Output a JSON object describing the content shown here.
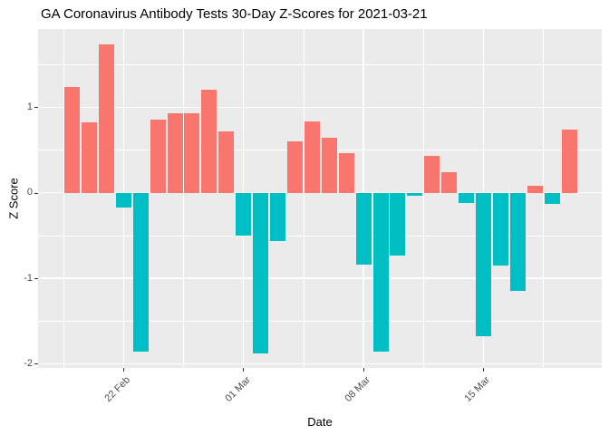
{
  "title": "GA Coronavirus Antibody Tests 30-Day Z-Scores for 2021-03-21",
  "chart_data": {
    "type": "bar",
    "title": "GA Coronavirus Antibody Tests 30-Day Z-Scores for 2021-03-21",
    "xlabel": "Date",
    "ylabel": "Z Score",
    "legend_position": "none",
    "grid": "on",
    "ylim": [
      -2.06,
      1.92
    ],
    "y_major_ticks": [
      1,
      0,
      -1,
      -2
    ],
    "y_major_tick_labels": [
      "1",
      "0",
      "-1",
      "-2"
    ],
    "y_minor_ticks": [
      1.5,
      0.5,
      -0.5,
      -1.5
    ],
    "x_tick_labels": [
      "22 Feb",
      "01 Mar",
      "08 Mar",
      "15 Mar"
    ],
    "x_tick_dates": [
      "2021-02-22",
      "2021-03-01",
      "2021-03-08",
      "2021-03-15"
    ],
    "dates": [
      "2021-02-19",
      "2021-02-20",
      "2021-02-21",
      "2021-02-22",
      "2021-02-23",
      "2021-02-24",
      "2021-02-25",
      "2021-02-26",
      "2021-02-27",
      "2021-02-28",
      "2021-03-01",
      "2021-03-02",
      "2021-03-03",
      "2021-03-04",
      "2021-03-05",
      "2021-03-06",
      "2021-03-07",
      "2021-03-08",
      "2021-03-09",
      "2021-03-10",
      "2021-03-11",
      "2021-03-12",
      "2021-03-13",
      "2021-03-14",
      "2021-03-15",
      "2021-03-16",
      "2021-03-17",
      "2021-03-18",
      "2021-03-19",
      "2021-03-20"
    ],
    "values": [
      1.24,
      0.82,
      1.74,
      -0.17,
      -1.86,
      0.86,
      0.93,
      0.93,
      1.21,
      0.72,
      -0.5,
      -1.88,
      -0.57,
      0.6,
      0.83,
      0.64,
      0.46,
      -0.84,
      -1.86,
      -0.74,
      -0.03,
      0.43,
      0.24,
      -0.12,
      -1.68,
      -0.85,
      -1.15,
      0.08,
      -0.13,
      0.74
    ],
    "positive_color": "#F8766D",
    "negative_color": "#00BFC4",
    "panel_background": "#EBEBEB",
    "gridline_color": "#FFFFFF",
    "tick_label_color": "#4D4D4D"
  }
}
